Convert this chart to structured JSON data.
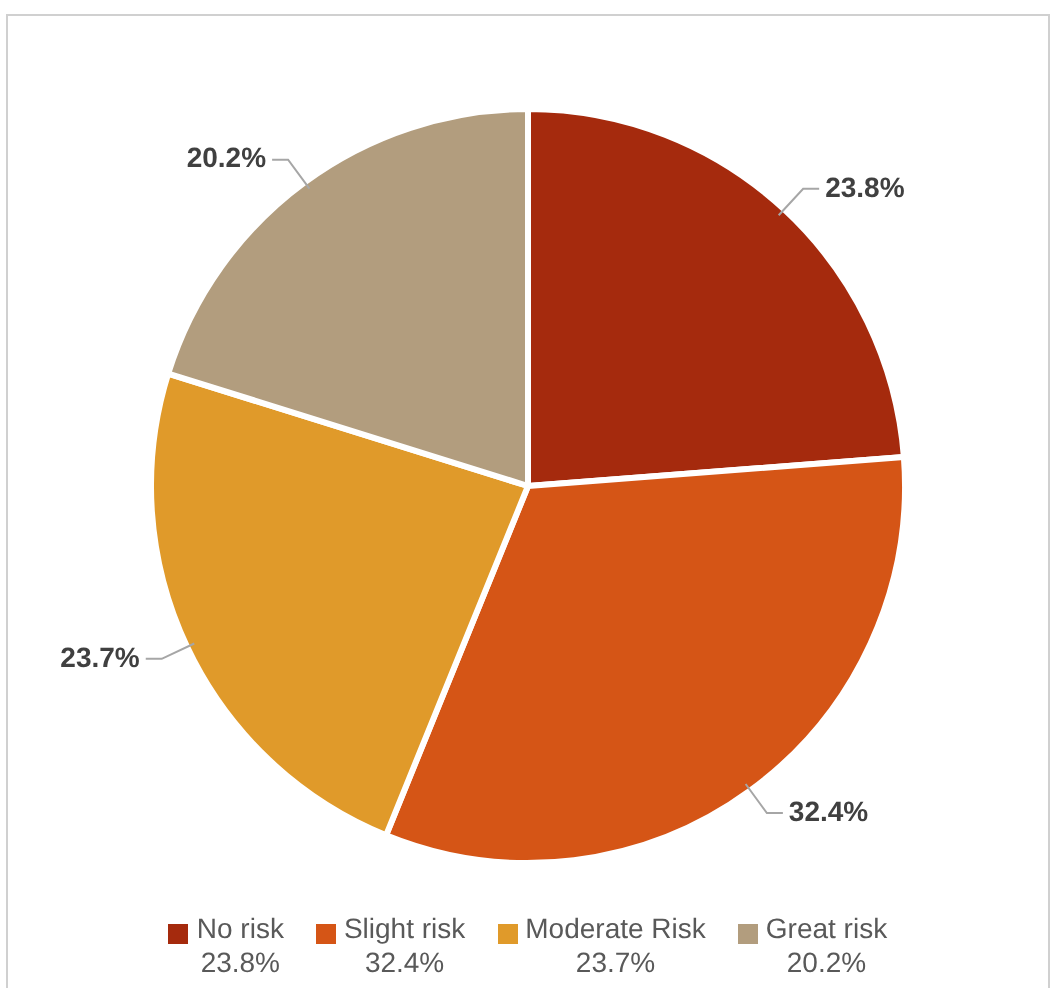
{
  "chart_data": {
    "type": "pie",
    "categories": [
      "No risk",
      "Slight risk",
      "Moderate Risk",
      "Great risk"
    ],
    "values": [
      23.8,
      32.4,
      23.7,
      20.2
    ],
    "value_labels": [
      "23.8%",
      "32.4%",
      "23.7%",
      "20.2%"
    ],
    "colors": [
      "#a52a0d",
      "#d55516",
      "#e09a2a",
      "#b29d7e"
    ],
    "legend": "bottom"
  }
}
